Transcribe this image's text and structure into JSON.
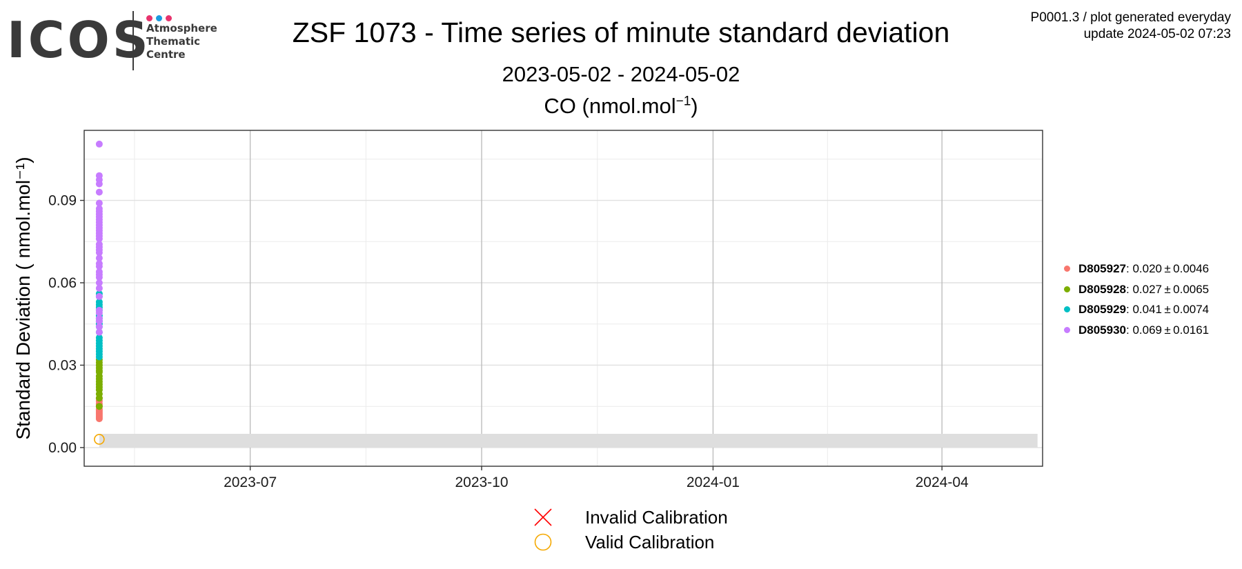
{
  "logo": {
    "word": "ICOS",
    "lines": [
      "Atmosphere",
      "Thematic",
      "Centre"
    ],
    "dot_colors": [
      "#e8336d",
      "#1a9be0",
      "#e8336d"
    ]
  },
  "header": {
    "title": "ZSF 1073 - Time series of minute standard deviation",
    "subtitle": "2023-05-02 - 2024-05-02",
    "panel_title_main": "CO (nmol.mol",
    "panel_title_sup": "−1",
    "panel_title_end": ")",
    "meta_line1": "P0001.3 / plot generated everyday",
    "meta_line2": "update  2024-05-02 07:23"
  },
  "chart_data": {
    "type": "scatter",
    "title": "CO (nmol.mol⁻¹)",
    "ylabel": "Standard Deviation ( nmol.mol⁻¹)",
    "xlabel": "",
    "xlim": [
      "2023-04-26",
      "2024-05-11"
    ],
    "ylim": [
      -0.0068,
      0.1155
    ],
    "x_ticks": [
      "2023-07-01",
      "2023-10-01",
      "2024-01-01",
      "2024-04-01"
    ],
    "x_tick_labels": [
      "2023-07",
      "2023-10",
      "2024-01",
      "2024-04"
    ],
    "y_ticks": [
      0.0,
      0.03,
      0.06,
      0.09
    ],
    "y_tick_labels": [
      "0.00",
      "0.03",
      "0.06",
      "0.09"
    ],
    "grid": true,
    "band": {
      "x_start": "2023-05-02",
      "x_end": "2024-05-09",
      "y_start": 0.0,
      "y_end": 0.005,
      "color": "#dedede"
    },
    "series": [
      {
        "name": "D805927",
        "color": "#f8766d",
        "x": "2023-05-02",
        "values": [
          0.0105,
          0.011,
          0.0115,
          0.012,
          0.0125,
          0.013,
          0.0135,
          0.014,
          0.015,
          0.0155,
          0.016,
          0.017,
          0.018
        ]
      },
      {
        "name": "D805928",
        "color": "#7cae00",
        "x": "2023-05-02",
        "values": [
          0.015,
          0.018,
          0.0195,
          0.021,
          0.022,
          0.023,
          0.024,
          0.025,
          0.026,
          0.0275,
          0.028,
          0.029,
          0.03,
          0.031,
          0.032
        ]
      },
      {
        "name": "D805929",
        "color": "#00bfc4",
        "x": "2023-05-02",
        "values": [
          0.033,
          0.034,
          0.035,
          0.036,
          0.037,
          0.038,
          0.039,
          0.04,
          0.042,
          0.044,
          0.045,
          0.046,
          0.047,
          0.048,
          0.05,
          0.051,
          0.052,
          0.053,
          0.055,
          0.056
        ]
      },
      {
        "name": "D805930",
        "color": "#c77cff",
        "x": "2023-05-02",
        "values": [
          0.042,
          0.044,
          0.046,
          0.047,
          0.049,
          0.05,
          0.055,
          0.058,
          0.06,
          0.062,
          0.063,
          0.064,
          0.066,
          0.067,
          0.069,
          0.071,
          0.072,
          0.073,
          0.074,
          0.076,
          0.077,
          0.078,
          0.079,
          0.08,
          0.081,
          0.082,
          0.083,
          0.084,
          0.085,
          0.086,
          0.087,
          0.089,
          0.093,
          0.096,
          0.0975,
          0.099,
          0.1105
        ]
      }
    ],
    "legend": {
      "placement": "right",
      "entries": [
        {
          "code": "D805927",
          "stat": ": 0.020 ± 0.0046",
          "color": "#f8766d"
        },
        {
          "code": "D805928",
          "stat": ": 0.027 ± 0.0065",
          "color": "#7cae00"
        },
        {
          "code": "D805929",
          "stat": ": 0.041 ± 0.0074",
          "color": "#00bfc4"
        },
        {
          "code": "D805930",
          "stat": ": 0.069 ± 0.0161",
          "color": "#c77cff"
        }
      ]
    },
    "calibration_points": [
      {
        "status": "Valid Calibration",
        "x": "2023-05-02",
        "y": 0.003
      }
    ],
    "calibration_legend": [
      {
        "label": "Invalid Calibration",
        "marker": "cross",
        "color": "#ff0000"
      },
      {
        "label": "Valid Calibration",
        "marker": "circle",
        "color": "#f5a800"
      }
    ]
  }
}
